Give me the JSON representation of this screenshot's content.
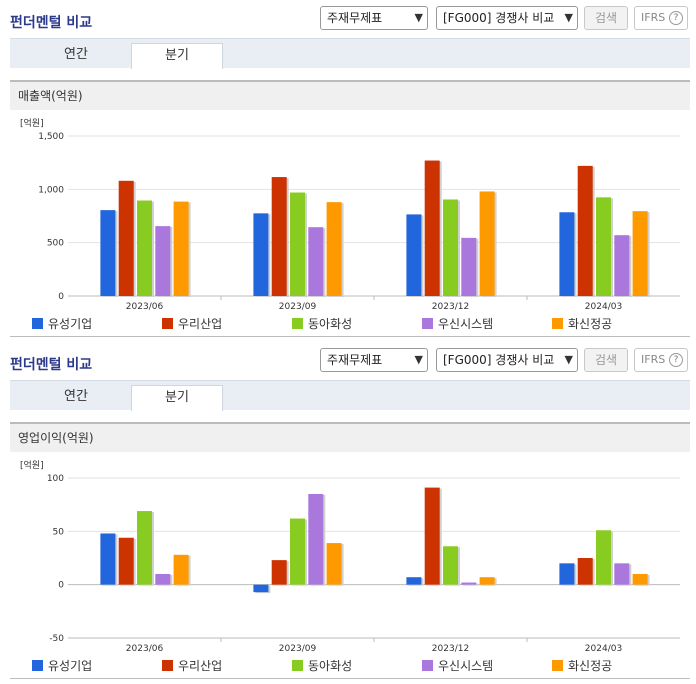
{
  "panels": [
    {
      "title": "펀더멘털 비교",
      "select_statement": "주재무제표",
      "select_compare": "[FG000] 경쟁사 비교",
      "search_label": "검색",
      "ifrs_label": "IFRS",
      "help_label": "?",
      "tabs": [
        {
          "label": "연간"
        },
        {
          "label": "분기"
        }
      ],
      "chart_data": {
        "type": "bar",
        "title": "매출액(억원)",
        "unit_label": "[억원]",
        "categories": [
          "2023/06",
          "2023/09",
          "2023/12",
          "2024/03"
        ],
        "ylim": [
          0,
          1500
        ],
        "yticks": [
          "0",
          "500",
          "1,000",
          "1,500"
        ],
        "ytick_values": [
          0,
          500,
          1000,
          1500
        ],
        "grid": true,
        "legend": "bottom",
        "series": [
          {
            "name": "유성기업",
            "color": "#2266dd",
            "values": [
              805,
              775,
              765,
              785
            ]
          },
          {
            "name": "우리산업",
            "color": "#cc3300",
            "values": [
              1080,
              1115,
              1270,
              1220
            ]
          },
          {
            "name": "동아화성",
            "color": "#88cc22",
            "values": [
              895,
              970,
              905,
              925
            ]
          },
          {
            "name": "우신시스템",
            "color": "#aa77dd",
            "values": [
              655,
              645,
              545,
              570
            ]
          },
          {
            "name": "화신정공",
            "color": "#ff9900",
            "values": [
              885,
              880,
              980,
              795
            ]
          }
        ]
      }
    },
    {
      "title": "펀더멘털 비교",
      "select_statement": "주재무제표",
      "select_compare": "[FG000] 경쟁사 비교",
      "search_label": "검색",
      "ifrs_label": "IFRS",
      "help_label": "?",
      "tabs": [
        {
          "label": "연간"
        },
        {
          "label": "분기"
        }
      ],
      "chart_data": {
        "type": "bar",
        "title": "영업이익(억원)",
        "unit_label": "[억원]",
        "categories": [
          "2023/06",
          "2023/09",
          "2023/12",
          "2024/03"
        ],
        "ylim": [
          -50,
          100
        ],
        "yticks": [
          "-50",
          "0",
          "50",
          "100"
        ],
        "ytick_values": [
          -50,
          0,
          50,
          100
        ],
        "grid": true,
        "legend": "bottom",
        "series": [
          {
            "name": "유성기업",
            "color": "#2266dd",
            "values": [
              48,
              -7,
              7,
              20
            ]
          },
          {
            "name": "우리산업",
            "color": "#cc3300",
            "values": [
              44,
              23,
              91,
              25
            ]
          },
          {
            "name": "동아화성",
            "color": "#88cc22",
            "values": [
              69,
              62,
              36,
              51
            ]
          },
          {
            "name": "우신시스템",
            "color": "#aa77dd",
            "values": [
              10,
              85,
              2,
              20
            ]
          },
          {
            "name": "화신정공",
            "color": "#ff9900",
            "values": [
              28,
              39,
              7,
              10
            ]
          }
        ]
      }
    }
  ]
}
